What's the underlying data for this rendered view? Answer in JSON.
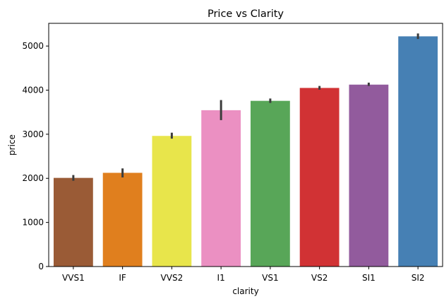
{
  "chart_data": {
    "type": "bar",
    "title": "Price vs Clarity",
    "xlabel": "clarity",
    "ylabel": "price",
    "categories": [
      "VVS1",
      "IF",
      "VVS2",
      "I1",
      "VS1",
      "VS2",
      "SI1",
      "SI2"
    ],
    "values": [
      2010,
      2125,
      2962,
      3545,
      3757,
      4050,
      4125,
      5220
    ],
    "error_bars": [
      [
        1945,
        2075
      ],
      [
        2020,
        2225
      ],
      [
        2900,
        3035
      ],
      [
        3320,
        3775
      ],
      [
        3710,
        3810
      ],
      [
        4010,
        4095
      ],
      [
        4095,
        4170
      ],
      [
        5160,
        5285
      ]
    ],
    "colors": [
      "#9a5b36",
      "#e07f1e",
      "#e8e54b",
      "#eb90c2",
      "#58a658",
      "#d13234",
      "#925b9d",
      "#4680b4"
    ],
    "error_color": "#3c3c3c",
    "ylim": [
      0,
      5515
    ],
    "yticks": [
      0,
      1000,
      2000,
      3000,
      4000,
      5000
    ],
    "grid": false,
    "legend": "none"
  }
}
